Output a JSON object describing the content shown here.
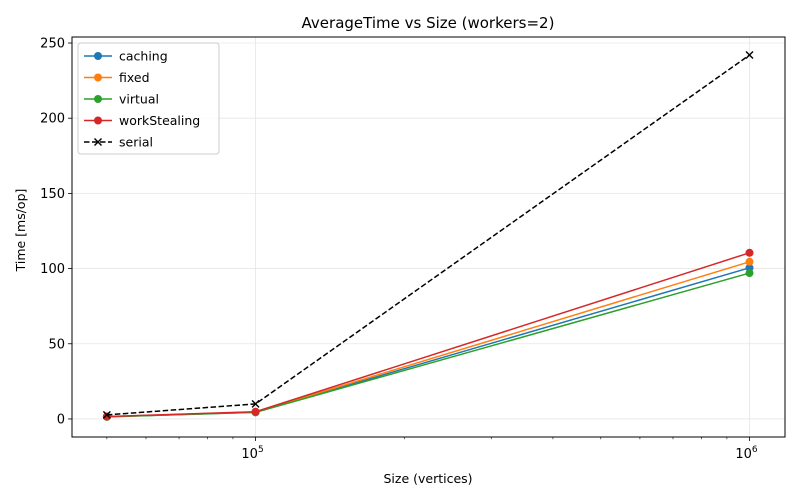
{
  "chart_data": {
    "type": "line",
    "title": "AverageTime vs Size (workers=2)",
    "xlabel": "Size (vertices)",
    "ylabel": "Time [ms/op]",
    "xscale": "log",
    "x": [
      50000,
      100000,
      1000000
    ],
    "xlim": [
      42500,
      1180000
    ],
    "ylim": [
      -12,
      254
    ],
    "xticks": [
      {
        "value": 100000,
        "base": "10",
        "exp": "5"
      },
      {
        "value": 1000000,
        "base": "10",
        "exp": "6"
      }
    ],
    "yticks": [
      0,
      50,
      100,
      150,
      200,
      250
    ],
    "ytick_labels": [
      "0",
      "50",
      "100",
      "150",
      "200",
      "250"
    ],
    "grid": true,
    "legend_position": "top-left",
    "series": [
      {
        "name": "caching",
        "values": [
          1.5,
          4.5,
          100.5
        ],
        "color": "#1f77b4",
        "marker": "circle",
        "linestyle": "solid"
      },
      {
        "name": "fixed",
        "values": [
          1.5,
          4.6,
          104.5
        ],
        "color": "#ff7f0e",
        "marker": "circle",
        "linestyle": "solid"
      },
      {
        "name": "virtual",
        "values": [
          1.4,
          4.4,
          97.0
        ],
        "color": "#2ca02c",
        "marker": "circle",
        "linestyle": "solid"
      },
      {
        "name": "workStealing",
        "values": [
          1.6,
          4.8,
          110.5
        ],
        "color": "#d62728",
        "marker": "circle",
        "linestyle": "solid"
      },
      {
        "name": "serial",
        "values": [
          2.7,
          10.0,
          242.0
        ],
        "color": "#000000",
        "marker": "x",
        "linestyle": "dashed"
      }
    ]
  }
}
